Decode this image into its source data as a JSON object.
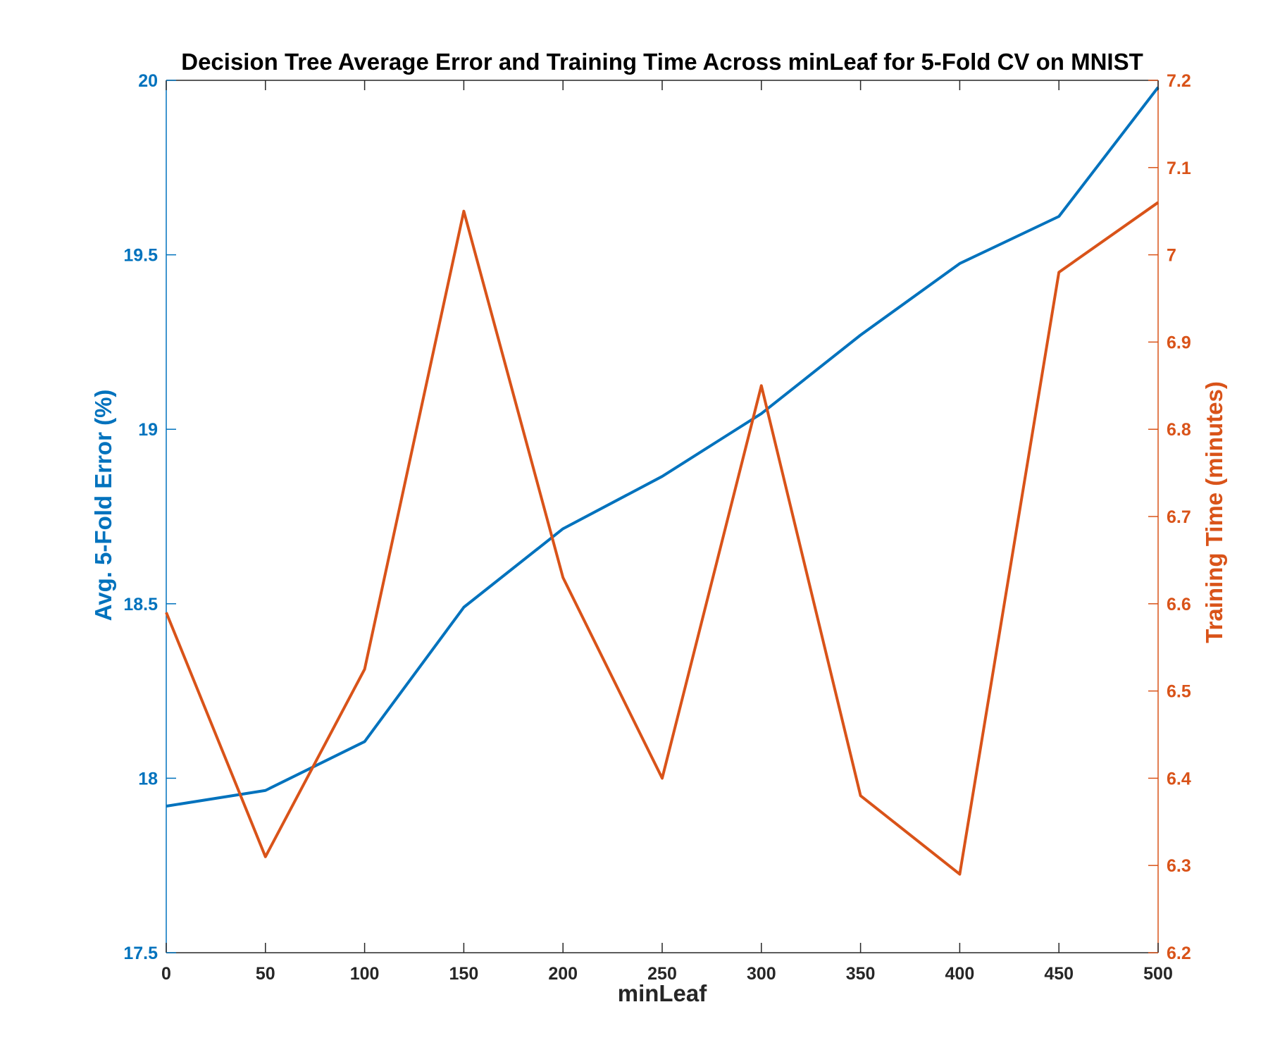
{
  "chart_data": {
    "type": "line",
    "title": "Decision Tree Average Error and Training Time Across minLeaf for 5-Fold CV on MNIST",
    "xlabel": "minLeaf",
    "ylabel_left": "Avg. 5-Fold Error (%)",
    "ylabel_right": "Training Time (minutes)",
    "xlim": [
      0,
      500
    ],
    "ylim_left": [
      17.5,
      20
    ],
    "ylim_right": [
      6.2,
      7.2
    ],
    "xticks": [
      "0",
      "50",
      "100",
      "150",
      "200",
      "250",
      "300",
      "350",
      "400",
      "450",
      "500"
    ],
    "yticks_left": [
      "17.5",
      "18",
      "18.5",
      "19",
      "19.5",
      "20"
    ],
    "yticks_right": [
      "6.2",
      "6.3",
      "6.4",
      "6.5",
      "6.6",
      "6.7",
      "6.8",
      "6.9",
      "7",
      "7.1",
      "7.2"
    ],
    "grid": false,
    "colors": {
      "left": "#0072BD",
      "right": "#D95319",
      "axes": "#262626"
    },
    "x": [
      0,
      50,
      100,
      150,
      200,
      250,
      300,
      350,
      400,
      450,
      500
    ],
    "series": [
      {
        "axis": "left",
        "values": [
          17.92,
          17.965,
          18.105,
          18.49,
          18.715,
          18.865,
          19.045,
          19.27,
          19.475,
          19.61,
          19.98
        ]
      },
      {
        "axis": "right",
        "values": [
          6.59,
          6.31,
          6.525,
          7.05,
          6.63,
          6.4,
          6.85,
          6.38,
          6.29,
          6.98,
          7.06
        ]
      }
    ]
  }
}
